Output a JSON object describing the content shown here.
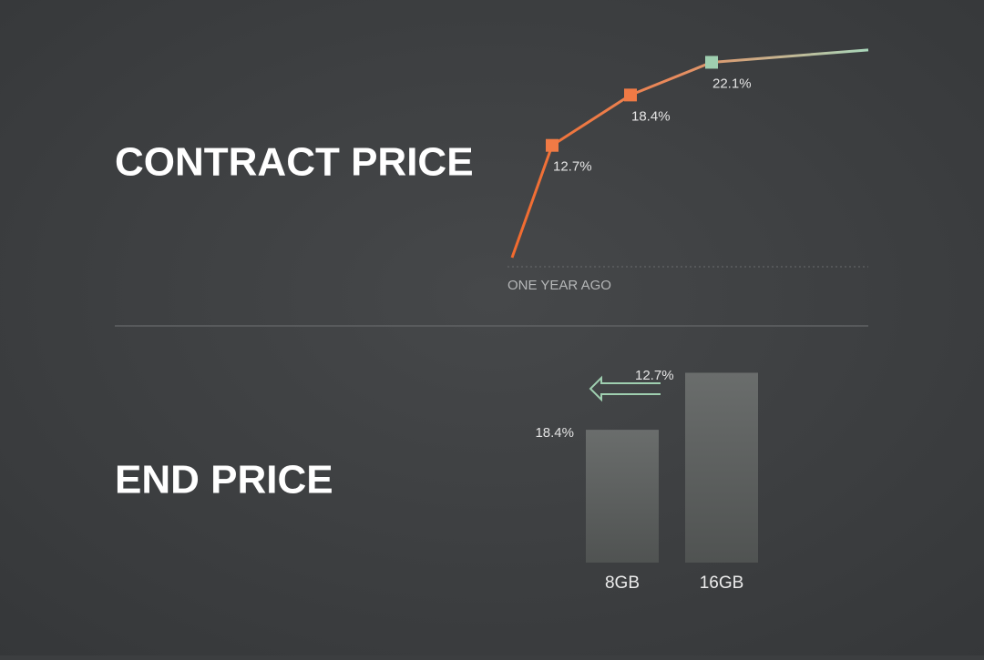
{
  "chart_data": [
    {
      "type": "line",
      "title": "CONTRACT PRICE",
      "categories": [
        "ONE YEAR AGO",
        null,
        null,
        null,
        null
      ],
      "values": [
        0,
        12.7,
        18.4,
        22.1,
        23.5
      ],
      "value_labels": [
        null,
        "12.7%",
        "18.4%",
        "22.1%",
        null
      ],
      "colors": [
        "#f07a45",
        "#f07a45",
        "#f07a45",
        "#9fcfb0",
        "#9fcfb0"
      ],
      "ylim": [
        0,
        24
      ]
    },
    {
      "type": "bar",
      "title": "END PRICE",
      "categories": [
        "8GB",
        "16GB"
      ],
      "values": [
        18.4,
        26.3
      ],
      "value_labels": [
        "18.4%",
        null
      ],
      "annotation": "12.7%",
      "color": "#5c5f5e",
      "ylim": [
        0,
        28
      ]
    }
  ]
}
